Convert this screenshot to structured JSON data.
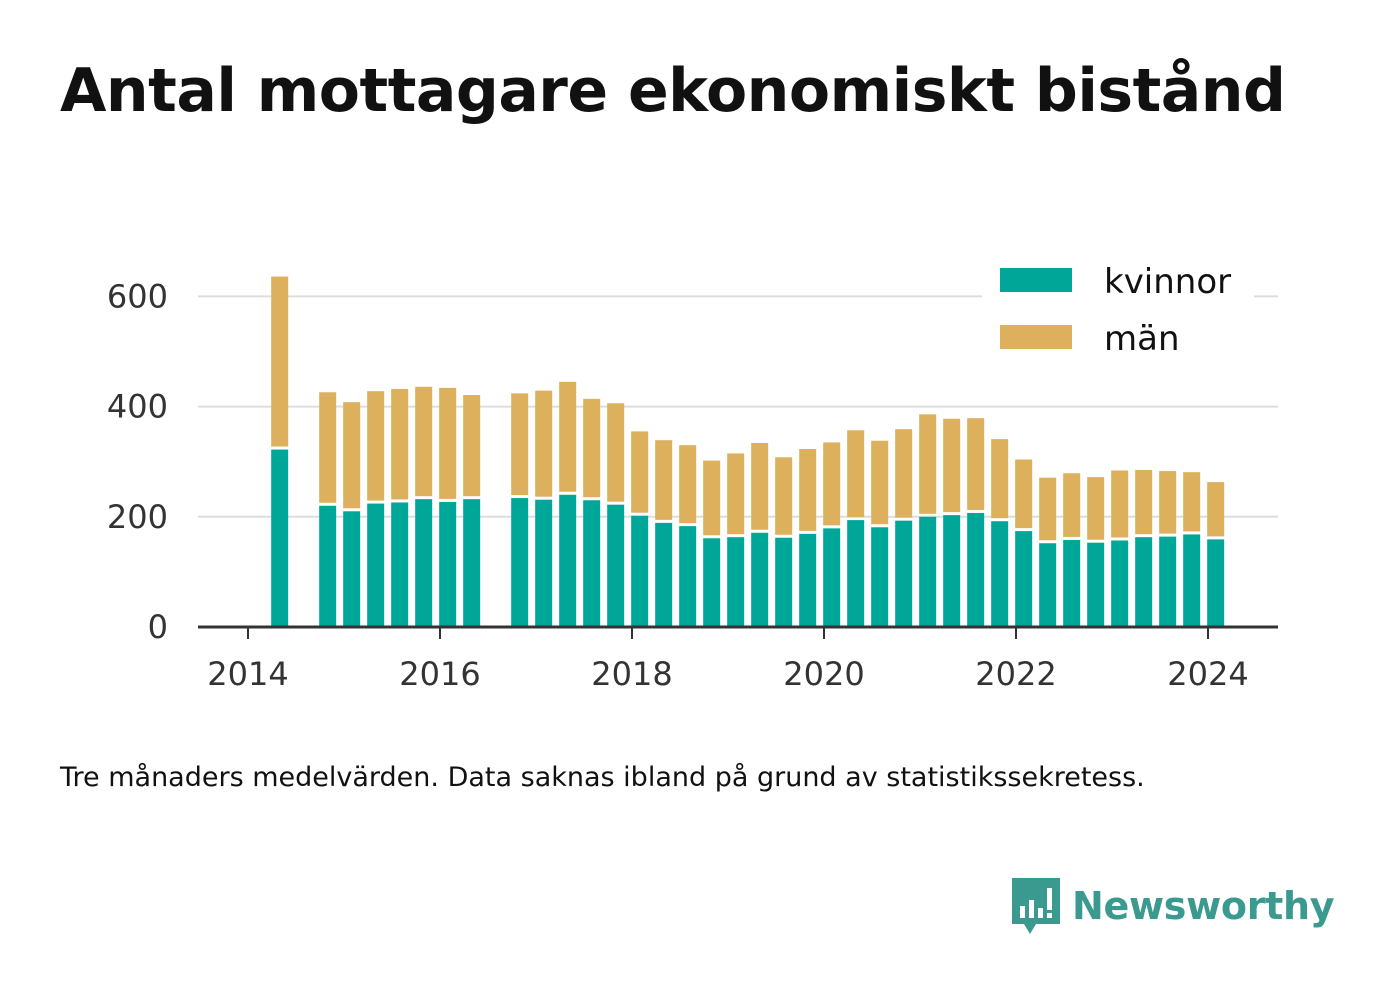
{
  "title": "Antal mottagare ekonomiskt bistånd",
  "note": "Tre månaders medelvärden. Data saknas ibland på grund av statistikssekretess.",
  "brand": {
    "name": "Newsworthy",
    "icon": "bar-chart-bubble-icon"
  },
  "colors": {
    "kvinnor": "#00a698",
    "man": "#dcb05c",
    "grid": "#dddddd",
    "axis": "#333333",
    "brand": "#3a9a8f"
  },
  "chart_data": {
    "type": "bar",
    "stacked": true,
    "title": "Antal mottagare ekonomiskt bistånd",
    "xlabel": "",
    "ylabel": "",
    "ylim": [
      0,
      650
    ],
    "yticks": [
      0,
      200,
      400,
      600
    ],
    "xticks": [
      2014,
      2016,
      2018,
      2020,
      2022,
      2024
    ],
    "xlim": [
      2013.5,
      2024.7
    ],
    "grid": true,
    "legend_position": "top-right",
    "x": [
      2014.33,
      2014.83,
      2015.08,
      2015.33,
      2015.58,
      2015.83,
      2016.08,
      2016.33,
      2016.83,
      2017.08,
      2017.33,
      2017.58,
      2017.83,
      2018.08,
      2018.33,
      2018.58,
      2018.83,
      2019.08,
      2019.33,
      2019.58,
      2019.83,
      2020.08,
      2020.33,
      2020.58,
      2020.83,
      2021.08,
      2021.33,
      2021.58,
      2021.83,
      2022.08,
      2022.33,
      2022.58,
      2022.83,
      2023.08,
      2023.33,
      2023.58,
      2023.83,
      2024.08
    ],
    "series": [
      {
        "name": "kvinnor",
        "color": "#00a698",
        "values": [
          322,
          220,
          210,
          224,
          226,
          232,
          227,
          232,
          234,
          231,
          240,
          230,
          222,
          202,
          189,
          183,
          161,
          163,
          171,
          162,
          169,
          179,
          194,
          181,
          193,
          200,
          203,
          207,
          192,
          174,
          152,
          158,
          153,
          157,
          163,
          164,
          168,
          159
        ]
      },
      {
        "name": "män",
        "color": "#dcb05c",
        "values": [
          314,
          206,
          198,
          204,
          206,
          204,
          207,
          189,
          190,
          198,
          205,
          184,
          184,
          153,
          150,
          147,
          141,
          152,
          163,
          146,
          154,
          156,
          163,
          157,
          166,
          186,
          175,
          172,
          149,
          130,
          119,
          121,
          119,
          127,
          122,
          119,
          113,
          104
        ]
      }
    ]
  }
}
